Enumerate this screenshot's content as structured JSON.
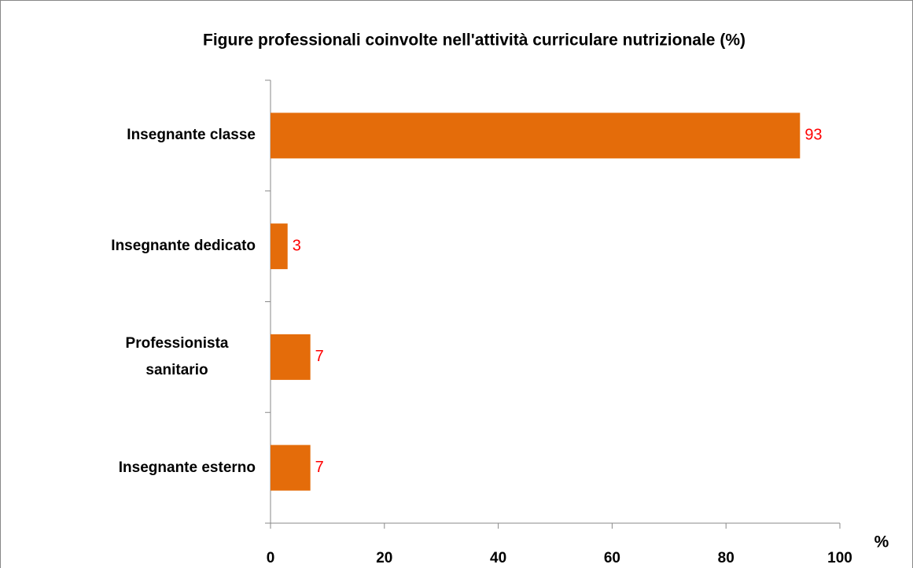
{
  "chart_data": {
    "type": "bar",
    "orientation": "horizontal",
    "title": "Figure professionali coinvolte nell'attività curriculare nutrizionale (%)",
    "categories": [
      "Insegnante classe",
      "Insegnante dedicato",
      "Professionista sanitario",
      "Insegnante esterno"
    ],
    "values": [
      93,
      3,
      7,
      7
    ],
    "color": "#e46c0a",
    "label_color": "#ff0000",
    "x_label": "%",
    "xlim": [
      0,
      100
    ],
    "xticks": [
      0,
      20,
      40,
      60,
      80,
      100
    ],
    "grid": false
  }
}
